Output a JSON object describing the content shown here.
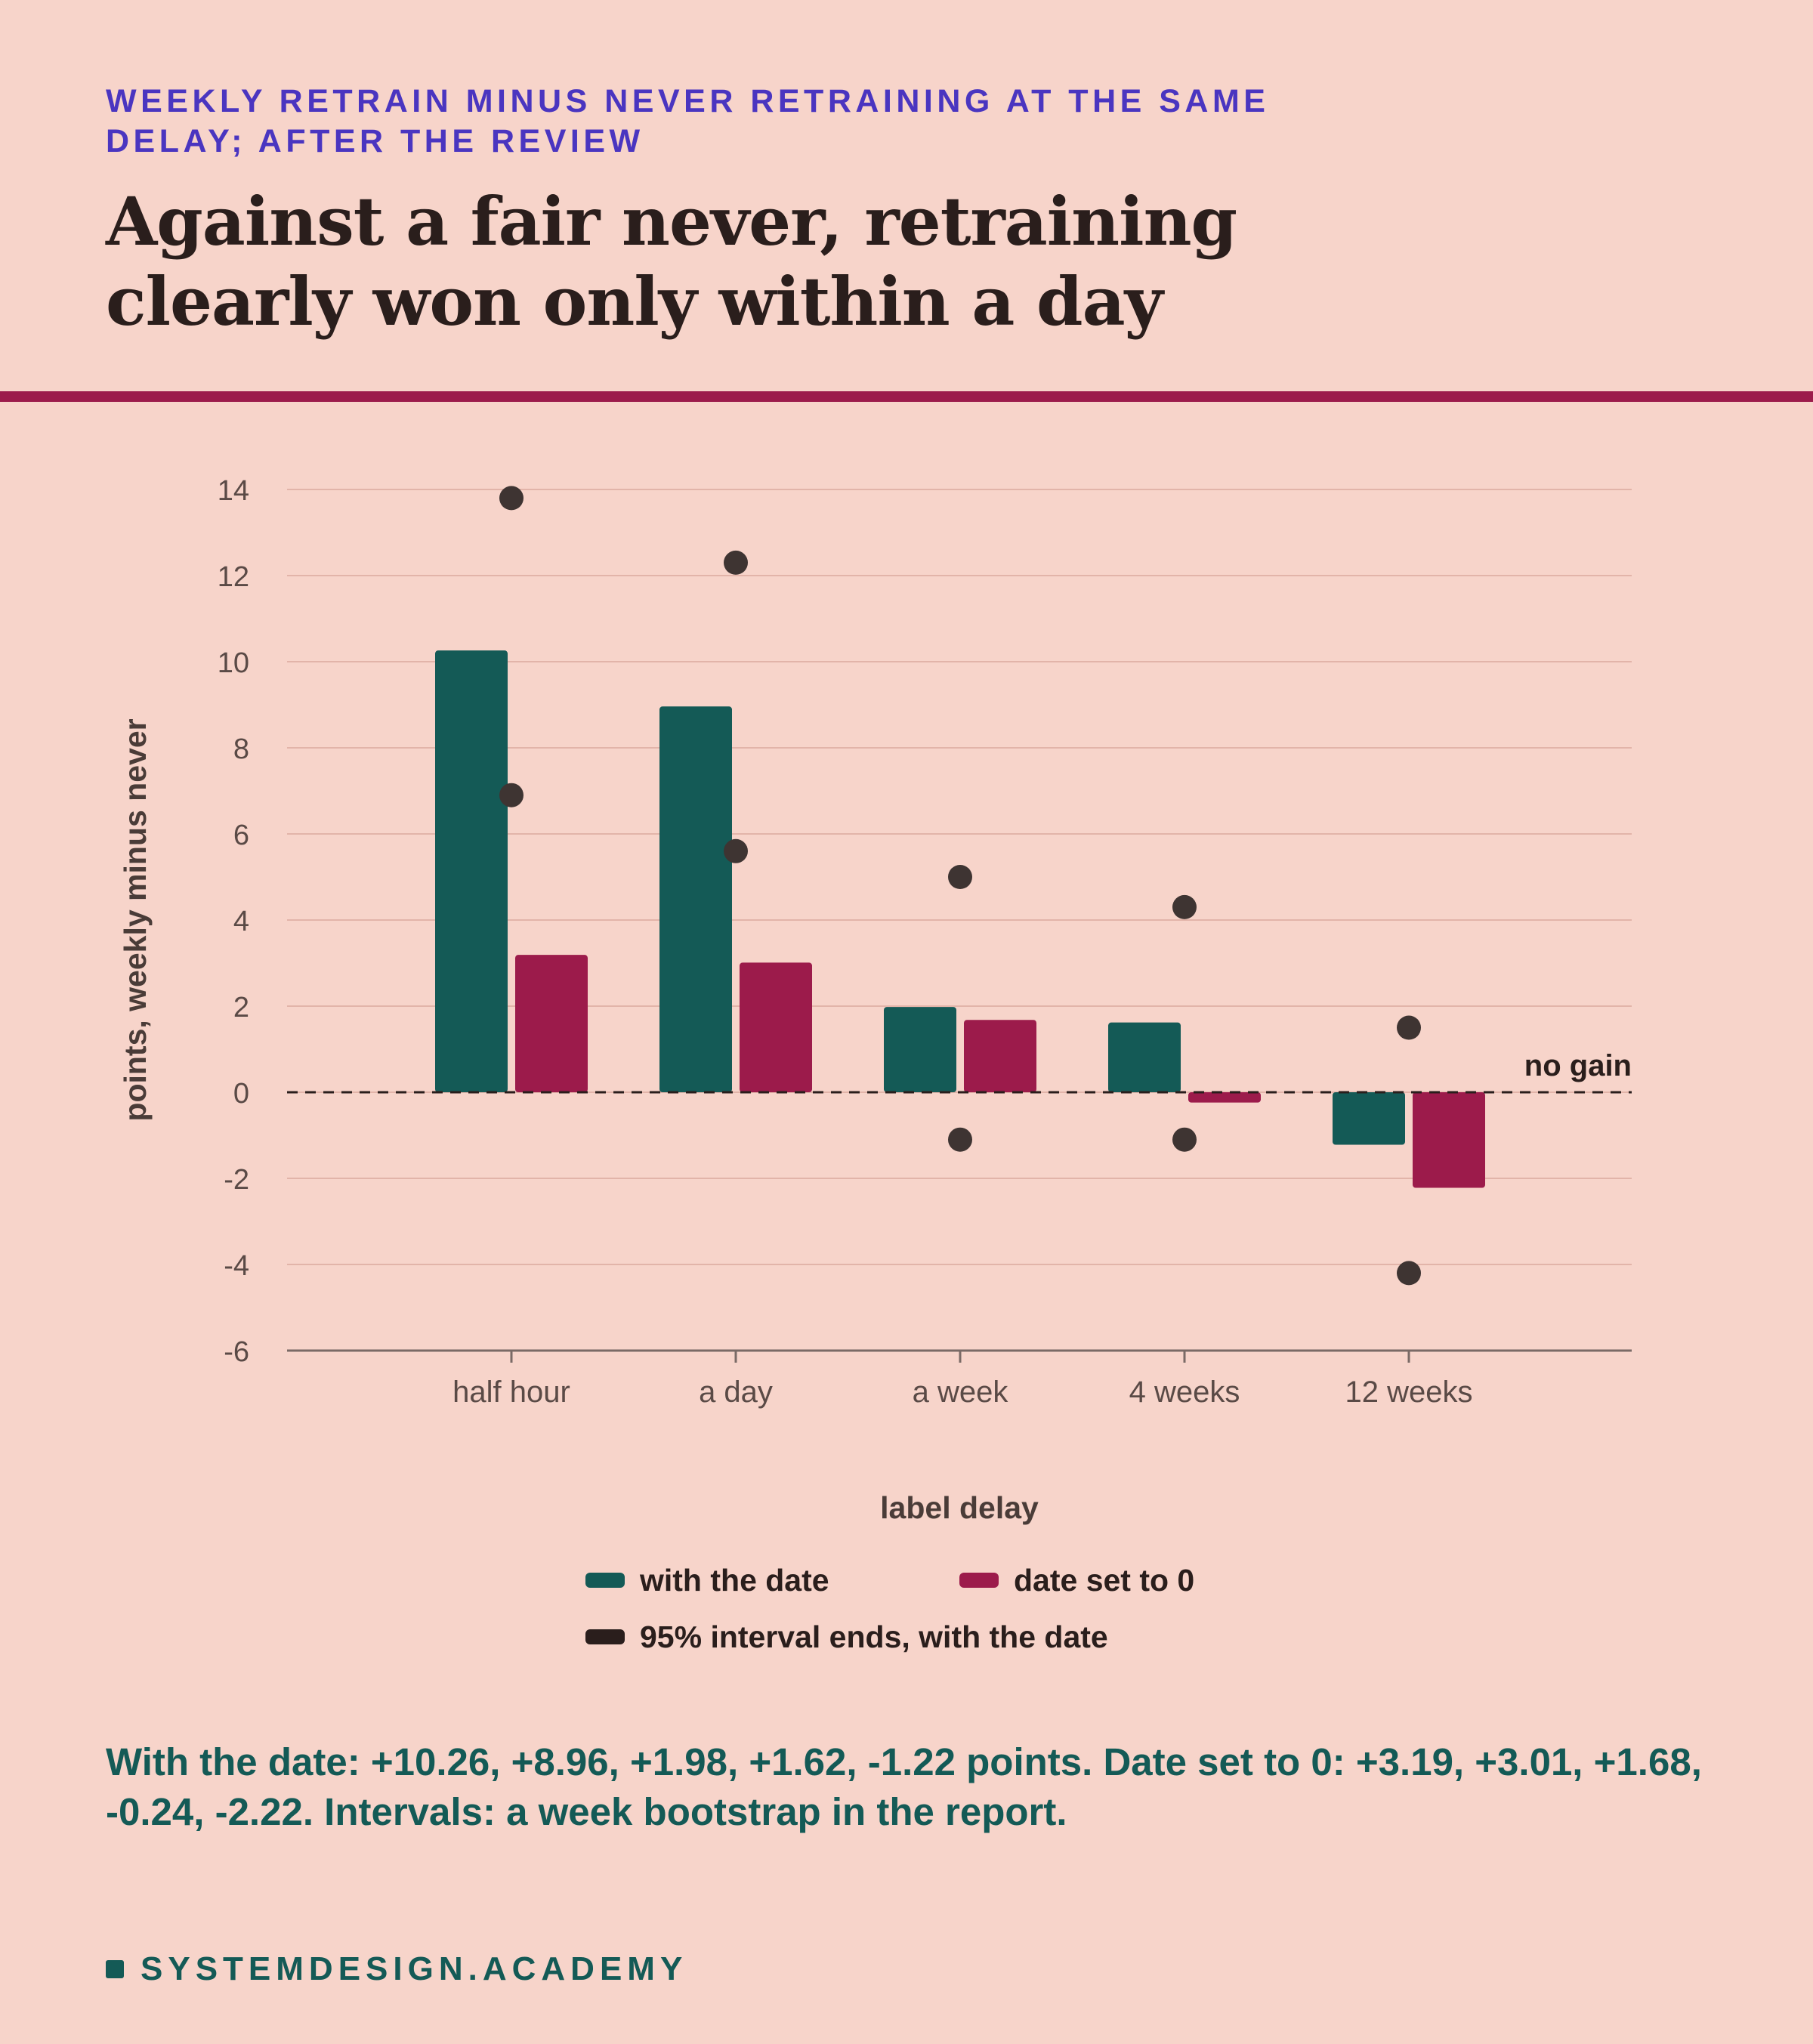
{
  "header": {
    "eyebrow": "WEEKLY RETRAIN MINUS NEVER RETRAINING AT THE SAME DELAY; AFTER THE REVIEW",
    "headline": "Against a fair never, retraining clearly won only within a day"
  },
  "colors": {
    "with_date": "#145a56",
    "date_zero": "#9c1b4b",
    "interval_dot": "#3e3432",
    "accent_rule": "#9c1b4b",
    "eyebrow": "#4a35c0"
  },
  "chart_data": {
    "type": "bar",
    "xlabel": "label delay",
    "ylabel": "points, weekly minus never",
    "categories": [
      "half hour",
      "a day",
      "a week",
      "4 weeks",
      "12 weeks"
    ],
    "ylim": [
      -6,
      14
    ],
    "yticks": [
      14,
      12,
      10,
      8,
      6,
      4,
      2,
      0,
      -2,
      -4,
      -6
    ],
    "grid": true,
    "legend_position": "bottom",
    "series": [
      {
        "name": "with the date",
        "values": [
          10.26,
          8.96,
          1.98,
          1.62,
          -1.22
        ]
      },
      {
        "name": "date set to 0",
        "values": [
          3.19,
          3.01,
          1.68,
          -0.24,
          -2.22
        ]
      }
    ],
    "intervals": {
      "name": "95% interval ends, with the date",
      "low": [
        6.9,
        5.6,
        -1.1,
        -1.1,
        -4.2
      ],
      "high": [
        13.8,
        12.3,
        5.0,
        4.3,
        1.5
      ]
    },
    "reference_line": {
      "value": 0,
      "label": "no gain",
      "style": "dashed"
    }
  },
  "footer": {
    "note": "With the date: +10.26, +8.96, +1.98, +1.62, -1.22 points. Date set to 0: +3.19, +3.01, +1.68, -0.24, -2.22. Intervals: a week bootstrap in the report.",
    "brand": "SYSTEMDESIGN.ACADEMY"
  }
}
